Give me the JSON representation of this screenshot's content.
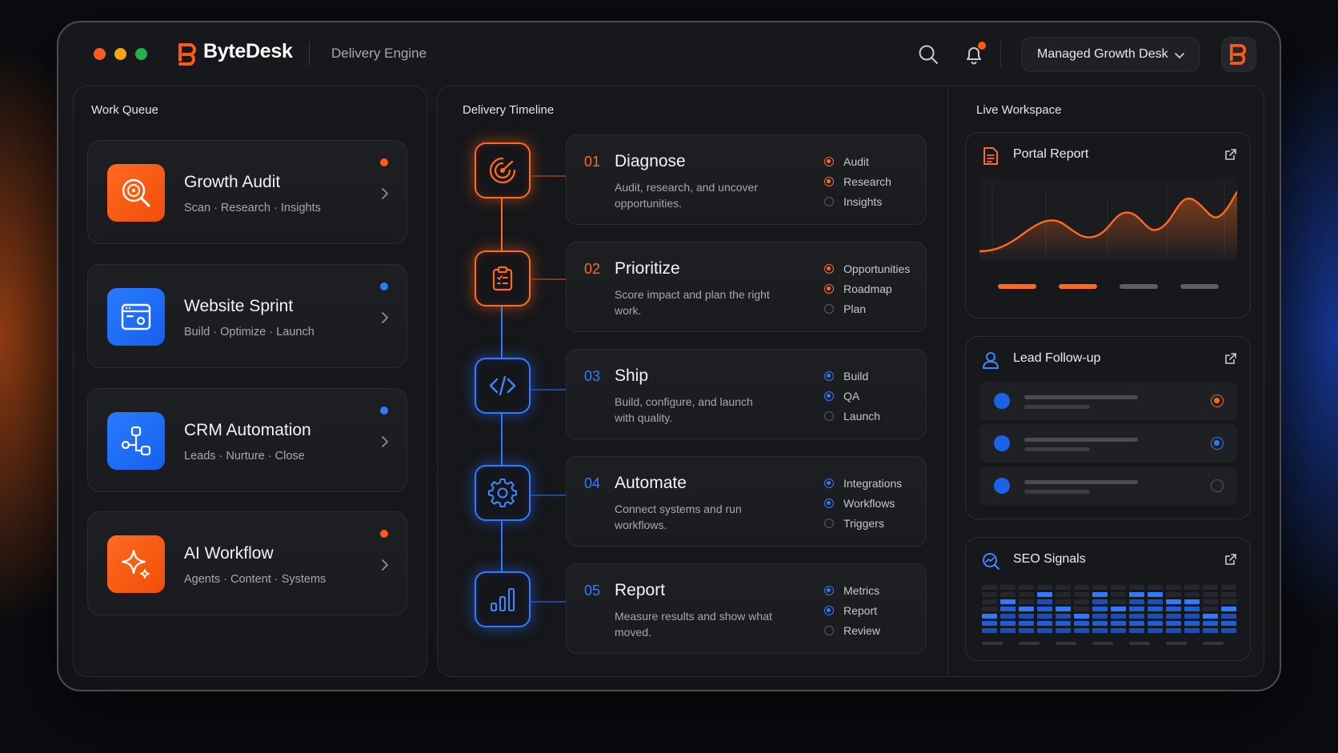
{
  "app": {
    "brand": "ByteDesk",
    "product": "Delivery Engine",
    "workspace_selector": "Managed Growth Desk",
    "colors": {
      "accent_orange": "#ff6a1f",
      "accent_blue": "#2f7bff",
      "background": "#0b0c10"
    }
  },
  "header": {
    "icons": [
      "search-icon",
      "bell-icon",
      "chevron-down-icon",
      "bytedesk-logo-icon"
    ],
    "notification_badge": true
  },
  "work_queue": {
    "title": "Work Queue",
    "items": [
      {
        "title": "Growth Audit",
        "subtitle": "Scan · Research · Insights",
        "icon": "magnifier-target-icon",
        "color": "orange"
      },
      {
        "title": "Website Sprint",
        "subtitle": "Build · Optimize · Launch",
        "icon": "browser-window-icon",
        "color": "blue"
      },
      {
        "title": "CRM Automation",
        "subtitle": "Leads · Nurture · Close",
        "icon": "workflow-nodes-icon",
        "color": "blue"
      },
      {
        "title": "AI Workflow",
        "subtitle": "Agents · Content · Systems",
        "icon": "sparkle-icon",
        "color": "orange"
      }
    ]
  },
  "timeline": {
    "title": "Delivery Timeline",
    "steps": [
      {
        "num": "01",
        "title": "Diagnose",
        "desc": "Audit, research, and uncover opportunities.",
        "icon": "radar-icon",
        "color": "orange",
        "options": [
          {
            "label": "Audit",
            "checked": true
          },
          {
            "label": "Research",
            "checked": true
          },
          {
            "label": "Insights",
            "checked": false
          }
        ]
      },
      {
        "num": "02",
        "title": "Prioritize",
        "desc": "Score impact and plan the right work.",
        "icon": "clipboard-list-icon",
        "color": "orange",
        "options": [
          {
            "label": "Opportunities",
            "checked": true
          },
          {
            "label": "Roadmap",
            "checked": true
          },
          {
            "label": "Plan",
            "checked": false
          }
        ]
      },
      {
        "num": "03",
        "title": "Ship",
        "desc": "Build, configure, and launch with quality.",
        "icon": "code-icon",
        "color": "blue",
        "options": [
          {
            "label": "Build",
            "checked": true
          },
          {
            "label": "QA",
            "checked": true
          },
          {
            "label": "Launch",
            "checked": false
          }
        ]
      },
      {
        "num": "04",
        "title": "Automate",
        "desc": "Connect systems and run workflows.",
        "icon": "gear-icon",
        "color": "blue",
        "options": [
          {
            "label": "Integrations",
            "checked": true
          },
          {
            "label": "Workflows",
            "checked": true
          },
          {
            "label": "Triggers",
            "checked": false
          }
        ]
      },
      {
        "num": "05",
        "title": "Report",
        "desc": "Measure results and show what moved.",
        "icon": "bar-chart-icon",
        "color": "blue",
        "options": [
          {
            "label": "Metrics",
            "checked": true
          },
          {
            "label": "Report",
            "checked": true
          },
          {
            "label": "Review",
            "checked": false
          }
        ]
      }
    ]
  },
  "live_workspace": {
    "title": "Live Workspace",
    "portal_report": {
      "title": "Portal Report",
      "icon": "document-icon"
    },
    "lead_followup": {
      "title": "Lead Follow-up",
      "icon": "user-icon",
      "rows": [
        {
          "status": "orange-selected"
        },
        {
          "status": "blue-selected"
        },
        {
          "status": "unselected"
        }
      ]
    },
    "seo_signals": {
      "title": "SEO Signals",
      "icon": "chart-search-icon"
    }
  }
}
